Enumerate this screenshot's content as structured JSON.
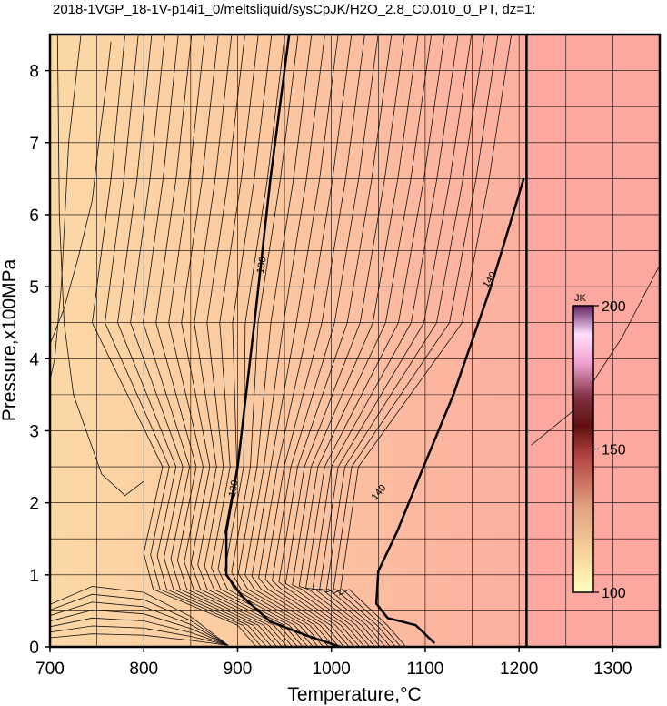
{
  "chart_data": {
    "type": "contour",
    "title": "2018-1VGP_18-1V-p14i1_0/meltsliquid/sysCpJK/H2O_2.8_C0.010_0_PT, dz=1:",
    "xlabel": "Temperature,°C",
    "ylabel": "Pressure,x100MPa",
    "xlim": [
      700,
      1350
    ],
    "ylim": [
      0,
      8.5
    ],
    "x_ticks": [
      "700",
      "800",
      "900",
      "1000",
      "1100",
      "1200",
      "1300"
    ],
    "y_ticks": [
      "0",
      "1",
      "2",
      "3",
      "4",
      "5",
      "6",
      "7",
      "8"
    ],
    "grid": true,
    "colorbar": {
      "unit": "JK",
      "min": 100,
      "max": 200,
      "tick_labels": [
        "100",
        "150",
        "200"
      ]
    },
    "contour_labels": [
      "130",
      "130",
      "140",
      "140"
    ],
    "major_contours": [
      {
        "level": 130,
        "points": [
          [
            955,
            8.5
          ],
          [
            935,
            6.5
          ],
          [
            918,
            4.5
          ],
          [
            900,
            2.5
          ],
          [
            888,
            1.6
          ],
          [
            888,
            1.0
          ],
          [
            905,
            0.7
          ],
          [
            935,
            0.35
          ],
          [
            975,
            0.15
          ],
          [
            1010,
            0.0
          ]
        ]
      },
      {
        "level": 140,
        "points": [
          [
            1205,
            6.5
          ],
          [
            1170,
            5.0
          ],
          [
            1130,
            3.5
          ],
          [
            1095,
            2.4
          ],
          [
            1070,
            1.6
          ],
          [
            1050,
            1.05
          ],
          [
            1048,
            0.6
          ],
          [
            1060,
            0.4
          ],
          [
            1090,
            0.3
          ],
          [
            1110,
            0.05
          ]
        ]
      }
    ],
    "thick_vertical_boundary_x": 1208
  }
}
